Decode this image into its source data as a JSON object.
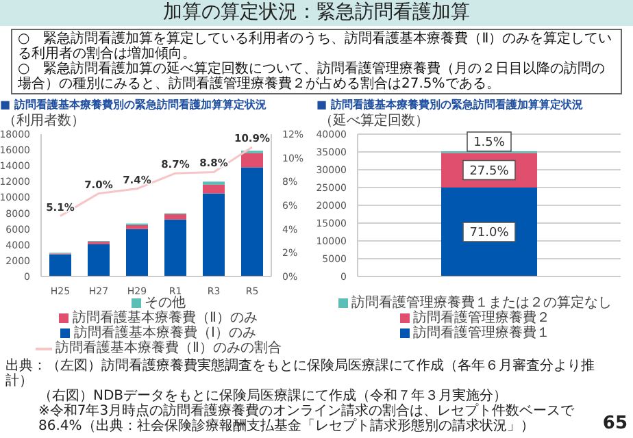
{
  "chart_data": [
    {
      "type": "bar",
      "stacked": true,
      "title": "■ 訪問看護基本療養費別の緊急訪問看護加算算定状況",
      "ylabel": "（利用者数）",
      "annotations": [
        "加算の算定状況：緊急訪問看護加算",
        "○　緊急訪問看護加算を算定している利用者のうち、訪問看護基本療養費（Ⅱ）のみを算定している利用者の割合は増加傾向。",
        "○　緊急訪問看護加算の延べ算定回数について、訪問看護管理療養費（月の２日目以降の訪問の場合）の種別にみると、訪問看護管理療養費２が占める割合は27.5%である。"
      ],
      "categories": [
        "H25",
        "H27",
        "H29",
        "R1",
        "R3",
        "R5"
      ],
      "series": [
        {
          "name": "訪問看護基本療養費（Ⅰ）のみ",
          "color": "#0057b0",
          "values": [
            2800,
            4100,
            6000,
            7200,
            10500,
            13800
          ]
        },
        {
          "name": "訪問看護基本療養費（Ⅱ）のみ",
          "color": "#e0506e",
          "values": [
            100,
            300,
            500,
            700,
            1100,
            1800
          ]
        },
        {
          "name": "その他",
          "color": "#5bbfb5",
          "values": [
            100,
            100,
            200,
            100,
            400,
            300
          ]
        },
        {
          "name": "訪問看護基本療養費（Ⅱ）のみの割合",
          "type": "line",
          "axis": "y2",
          "color": "#f7c4c8",
          "values": [
            5.1,
            7.0,
            7.4,
            8.7,
            8.8,
            10.9
          ],
          "value_labels": [
            "5.1%",
            "7.0%",
            "7.4%",
            "8.7%",
            "8.8%",
            "10.9%"
          ]
        }
      ],
      "ylim": [
        0,
        18000
      ],
      "yticks": [
        0,
        2000,
        4000,
        6000,
        8000,
        10000,
        12000,
        14000,
        16000,
        18000
      ],
      "y2lim": [
        0,
        12
      ],
      "y2ticks": [
        {
          "value": 0,
          "label": "0%"
        },
        {
          "value": 2,
          "label": "2%"
        },
        {
          "value": 4,
          "label": "4%"
        },
        {
          "value": 6,
          "label": "6%"
        },
        {
          "value": 8,
          "label": "8%"
        },
        {
          "value": 10,
          "label": "10%"
        },
        {
          "value": 12,
          "label": "12%"
        }
      ],
      "legend": "bottom"
    },
    {
      "type": "bar",
      "stacked": true,
      "title": "■ 訪問看護基本療養費別の緊急訪問看護加算算定状況",
      "ylabel": "（延べ算定回数）",
      "annotations": [
        "出典：（左図）訪問看護療養費実態調査をもとに保険局医療課にて作成（各年６月審査分より推計）",
        "（右図）NDBデータをもとに保険局医療課にて作成（令和７年３月実施分）",
        "※令和7年3月時点の訪問看護療養費のオンライン請求の割合は、レセプト件数ベースで86.4%（出典：社会保険診療報酬支払基金「レセプト請求形態別の請求状況」）",
        "65",
        {
          "text": "71.0%",
          "y": 12500
        },
        {
          "text": "27.5%",
          "y": 29900
        },
        {
          "text": "1.5%",
          "y": 37900
        }
      ],
      "categories": [
        null
      ],
      "series": [
        {
          "name": "訪問看護管理療養費１",
          "color": "#0057b0",
          "values": [
            25000
          ]
        },
        {
          "name": "訪問看護管理療養費２",
          "color": "#e0506e",
          "values": [
            9700
          ]
        },
        {
          "name": "訪問看護管理療養費１または２の算定なし",
          "color": "#5bbfb5",
          "values": [
            500
          ]
        }
      ],
      "ylim": [
        0,
        40000
      ],
      "yticks": [
        0,
        5000,
        10000,
        15000,
        20000,
        25000,
        30000,
        35000,
        40000
      ],
      "grid": "y",
      "legend": "bottom"
    }
  ]
}
